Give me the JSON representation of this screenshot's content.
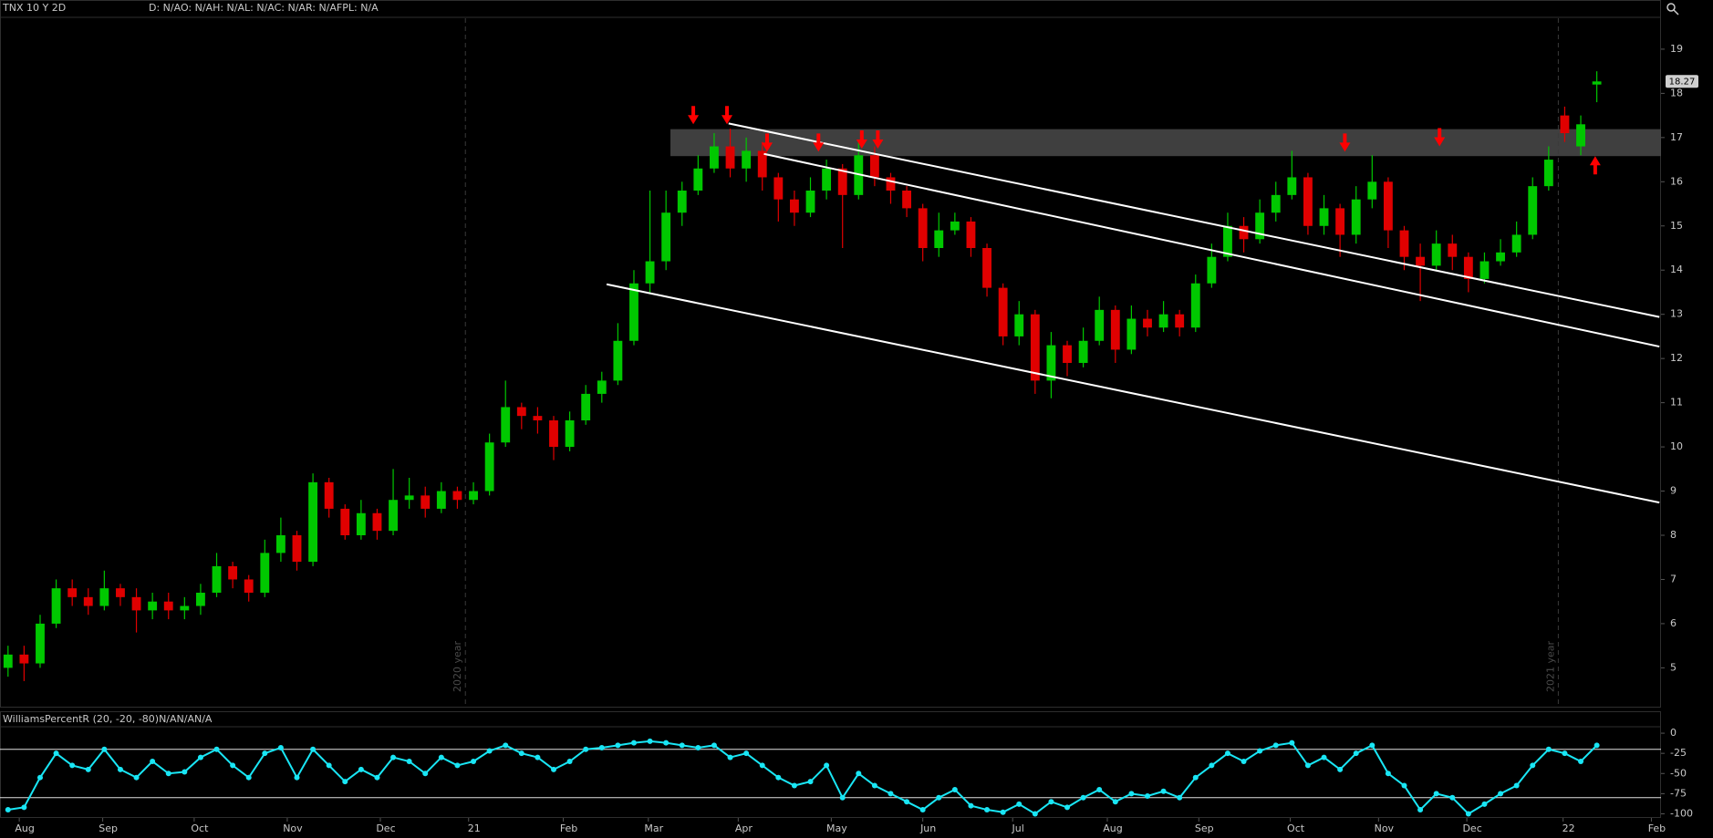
{
  "chart_data": [
    {
      "type": "candlestick",
      "title": "TNX 10 Y 2D",
      "subtitle": "D: N/AO: N/AH: N/AL: N/AC: N/AR: N/AFPL: N/A",
      "open": [
        5.0,
        5.3,
        5.1,
        6.0,
        6.8,
        6.6,
        6.4,
        6.8,
        6.6,
        6.3,
        6.5,
        6.3,
        6.4,
        6.7,
        7.3,
        7.0,
        6.7,
        7.6,
        8.0,
        7.4,
        9.2,
        8.6,
        8.0,
        8.5,
        8.1,
        8.8,
        8.9,
        8.6,
        9.0,
        8.8,
        9.0,
        10.1,
        10.9,
        10.7,
        10.6,
        10.0,
        10.6,
        11.2,
        11.5,
        12.4,
        13.7,
        14.2,
        15.3,
        15.8,
        16.3,
        16.8,
        16.3,
        16.7,
        16.1,
        15.6,
        15.3,
        15.8,
        16.3,
        15.7,
        16.6,
        16.1,
        15.8,
        15.4,
        14.5,
        14.9,
        15.1,
        14.5,
        13.6,
        12.5,
        13.0,
        11.5,
        12.3,
        11.9,
        12.4,
        13.1,
        12.2,
        12.9,
        12.7,
        13.0,
        12.7,
        13.7,
        14.3,
        15.0,
        14.7,
        15.3,
        15.7,
        16.1,
        15.0,
        15.4,
        14.8,
        15.6,
        16.0,
        14.9,
        14.3,
        14.1,
        14.6,
        14.3,
        13.8,
        14.2,
        14.4,
        14.8,
        15.9,
        17.5,
        16.8,
        18.2
      ],
      "high": [
        5.5,
        5.5,
        6.2,
        7.0,
        7.0,
        6.8,
        7.2,
        6.9,
        6.8,
        6.7,
        6.7,
        6.6,
        6.9,
        7.6,
        7.4,
        7.1,
        7.9,
        8.4,
        8.1,
        9.4,
        9.3,
        8.7,
        8.8,
        8.6,
        9.5,
        9.3,
        9.1,
        9.2,
        9.1,
        9.2,
        10.3,
        11.5,
        11.0,
        10.9,
        10.7,
        10.8,
        11.4,
        11.7,
        12.8,
        14.0,
        15.8,
        15.8,
        16.0,
        16.6,
        17.1,
        17.2,
        17.0,
        16.9,
        16.2,
        15.8,
        16.1,
        16.5,
        16.4,
        16.9,
        16.8,
        16.2,
        15.9,
        15.5,
        15.3,
        15.3,
        15.2,
        14.6,
        13.7,
        13.3,
        13.1,
        12.6,
        12.4,
        12.7,
        13.4,
        13.2,
        13.2,
        13.1,
        13.3,
        13.1,
        13.9,
        14.6,
        15.3,
        15.2,
        15.6,
        16.0,
        16.7,
        16.2,
        15.7,
        15.5,
        15.9,
        16.6,
        16.1,
        15.0,
        14.6,
        14.9,
        14.8,
        14.4,
        14.4,
        14.7,
        15.1,
        16.1,
        16.8,
        17.7,
        17.5,
        18.5
      ],
      "low": [
        4.8,
        4.7,
        5.0,
        5.9,
        6.4,
        6.2,
        6.3,
        6.4,
        5.8,
        6.1,
        6.1,
        6.1,
        6.2,
        6.6,
        6.8,
        6.5,
        6.6,
        7.4,
        7.2,
        7.3,
        8.4,
        7.9,
        7.9,
        7.9,
        8.0,
        8.6,
        8.4,
        8.5,
        8.6,
        8.7,
        8.9,
        10.0,
        10.4,
        10.3,
        9.7,
        9.9,
        10.5,
        11.0,
        11.4,
        12.3,
        13.5,
        14.0,
        15.0,
        15.7,
        16.2,
        16.1,
        16.0,
        15.8,
        15.1,
        15.0,
        15.2,
        15.6,
        14.5,
        15.6,
        15.9,
        15.5,
        15.2,
        14.2,
        14.3,
        14.8,
        14.3,
        13.4,
        12.3,
        12.3,
        11.2,
        11.1,
        11.6,
        11.8,
        12.3,
        11.9,
        12.1,
        12.5,
        12.6,
        12.5,
        12.6,
        13.6,
        14.2,
        14.4,
        14.6,
        15.1,
        15.6,
        14.8,
        14.8,
        14.3,
        14.6,
        15.4,
        14.5,
        14.0,
        13.3,
        14.0,
        14.0,
        13.5,
        13.7,
        14.1,
        14.3,
        14.7,
        15.8,
        16.9,
        16.6,
        17.8
      ],
      "close": [
        5.3,
        5.1,
        6.0,
        6.8,
        6.6,
        6.4,
        6.8,
        6.6,
        6.3,
        6.5,
        6.3,
        6.4,
        6.7,
        7.3,
        7.0,
        6.7,
        7.6,
        8.0,
        7.4,
        9.2,
        8.6,
        8.0,
        8.5,
        8.1,
        8.8,
        8.9,
        8.6,
        9.0,
        8.8,
        9.0,
        10.1,
        10.9,
        10.7,
        10.6,
        10.0,
        10.6,
        11.2,
        11.5,
        12.4,
        13.7,
        14.2,
        15.3,
        15.8,
        16.3,
        16.8,
        16.3,
        16.7,
        16.1,
        15.6,
        15.3,
        15.8,
        16.3,
        15.7,
        16.6,
        16.1,
        15.8,
        15.4,
        14.5,
        14.9,
        15.1,
        14.5,
        13.6,
        12.5,
        13.0,
        11.5,
        12.3,
        11.9,
        12.4,
        13.1,
        12.2,
        12.9,
        12.7,
        13.0,
        12.7,
        13.7,
        14.3,
        15.0,
        14.7,
        15.3,
        15.7,
        16.1,
        15.0,
        15.4,
        14.8,
        15.6,
        16.0,
        14.9,
        14.3,
        14.1,
        14.6,
        14.3,
        13.8,
        14.2,
        14.4,
        14.8,
        15.9,
        16.5,
        17.1,
        17.3,
        18.27
      ],
      "up_color": "#00c800",
      "down_color": "#e00000",
      "xlim": [
        -0.5,
        103
      ],
      "ylim": [
        4.1,
        19.7
      ],
      "yticks": [
        5,
        6,
        7,
        8,
        9,
        10,
        11,
        12,
        13,
        14,
        15,
        16,
        17,
        18,
        19
      ],
      "xticks": [
        {
          "value": 0.7,
          "label": "Aug"
        },
        {
          "value": 5.9,
          "label": "Sep"
        },
        {
          "value": 11.6,
          "label": "Oct"
        },
        {
          "value": 17.4,
          "label": "Nov"
        },
        {
          "value": 23.2,
          "label": "Dec"
        },
        {
          "value": 28.7,
          "label": "21"
        },
        {
          "value": 34.6,
          "label": "Feb"
        },
        {
          "value": 39.9,
          "label": "Mar"
        },
        {
          "value": 45.5,
          "label": "Apr"
        },
        {
          "value": 51.3,
          "label": "May"
        },
        {
          "value": 57.0,
          "label": "Jun"
        },
        {
          "value": 62.6,
          "label": "Jul"
        },
        {
          "value": 68.5,
          "label": "Aug"
        },
        {
          "value": 74.2,
          "label": "Sep"
        },
        {
          "value": 79.9,
          "label": "Oct"
        },
        {
          "value": 85.4,
          "label": "Nov"
        },
        {
          "value": 90.9,
          "label": "Dec"
        },
        {
          "value": 96.9,
          "label": "22"
        },
        {
          "value": 102.4,
          "label": "Feb"
        }
      ],
      "zone": {
        "ylim": [
          16.58,
          17.19
        ],
        "color": "#4a4a4a"
      },
      "trend_lines": [
        {
          "x": [
            44.9,
            102.9
          ],
          "y": [
            17.32,
            12.94
          ]
        },
        {
          "x": [
            47.1,
            102.9
          ],
          "y": [
            16.63,
            12.27
          ]
        },
        {
          "x": [
            37.3,
            102.9
          ],
          "y": [
            13.68,
            8.74
          ]
        }
      ],
      "markers": [
        {
          "x": 42.7,
          "y": 17.3,
          "dir": "down"
        },
        {
          "x": 44.8,
          "y": 17.3,
          "dir": "down"
        },
        {
          "x": 47.3,
          "y": 16.68,
          "dir": "down"
        },
        {
          "x": 50.5,
          "y": 16.68,
          "dir": "down"
        },
        {
          "x": 53.2,
          "y": 16.75,
          "dir": "down"
        },
        {
          "x": 54.2,
          "y": 16.75,
          "dir": "down"
        },
        {
          "x": 83.3,
          "y": 16.68,
          "dir": "down"
        },
        {
          "x": 89.2,
          "y": 16.8,
          "dir": "down"
        },
        {
          "x": 98.9,
          "y": 16.58,
          "dir": "up"
        }
      ],
      "marker_color": "#ff0000",
      "separators": [
        {
          "x": 28.5,
          "label": "2020 year"
        },
        {
          "x": 96.6,
          "label": "2021 year"
        }
      ]
    },
    {
      "type": "line",
      "title": "WilliamsPercentR (20, -20, -80)N/AN/AN/A",
      "values": [
        -95,
        -92,
        -55,
        -25,
        -40,
        -45,
        -20,
        -45,
        -55,
        -35,
        -50,
        -48,
        -30,
        -20,
        -40,
        -55,
        -25,
        -18,
        -55,
        -20,
        -40,
        -60,
        -45,
        -55,
        -30,
        -35,
        -50,
        -30,
        -40,
        -35,
        -22,
        -15,
        -25,
        -30,
        -45,
        -35,
        -20,
        -18,
        -15,
        -12,
        -10,
        -12,
        -15,
        -18,
        -15,
        -30,
        -25,
        -40,
        -55,
        -65,
        -60,
        -40,
        -80,
        -50,
        -65,
        -75,
        -85,
        -95,
        -80,
        -70,
        -90,
        -95,
        -98,
        -88,
        -100,
        -85,
        -92,
        -80,
        -70,
        -85,
        -75,
        -78,
        -72,
        -80,
        -55,
        -40,
        -25,
        -35,
        -22,
        -15,
        -12,
        -40,
        -30,
        -45,
        -25,
        -15,
        -50,
        -65,
        -95,
        -75,
        -80,
        -100,
        -88,
        -75,
        -65,
        -40,
        -20,
        -25,
        -35,
        -15
      ],
      "color": "#19e6f5",
      "xlim": [
        -0.5,
        103
      ],
      "ylim": [
        -104,
        8
      ],
      "yticks": [
        0,
        -25,
        -50,
        -75,
        -100
      ],
      "levels": [
        -20,
        -80
      ]
    }
  ]
}
